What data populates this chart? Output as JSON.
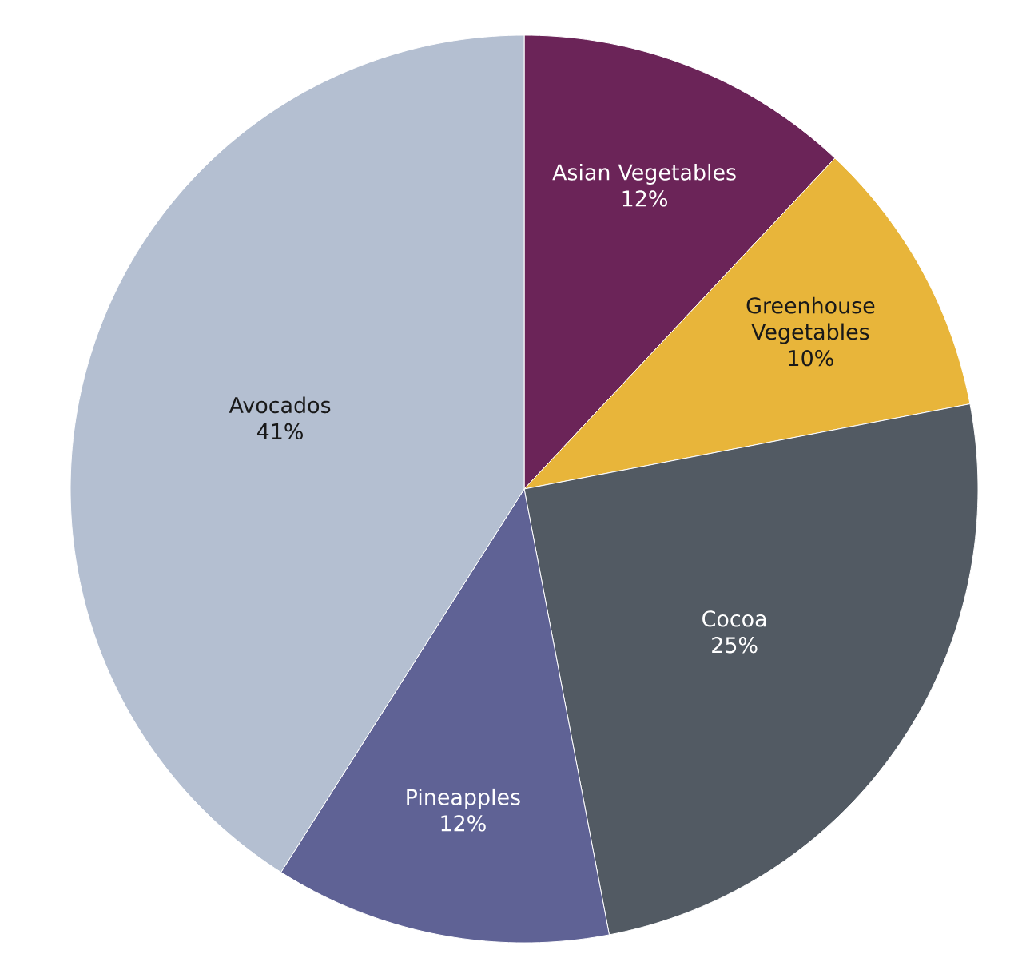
{
  "chart_data": {
    "type": "pie",
    "categories": [
      "Asian Vegetables",
      "Greenhouse Vegetables",
      "Cocoa",
      "Pineapples",
      "Avocados"
    ],
    "values": [
      12,
      10,
      25,
      12,
      41
    ],
    "colors": [
      "#6b2458",
      "#e8b53a",
      "#525a63",
      "#5f6295",
      "#b4bfd1"
    ],
    "data_labels": true,
    "value_labels": [
      "12%",
      "10%",
      "25%",
      "12%",
      "41%"
    ]
  }
}
